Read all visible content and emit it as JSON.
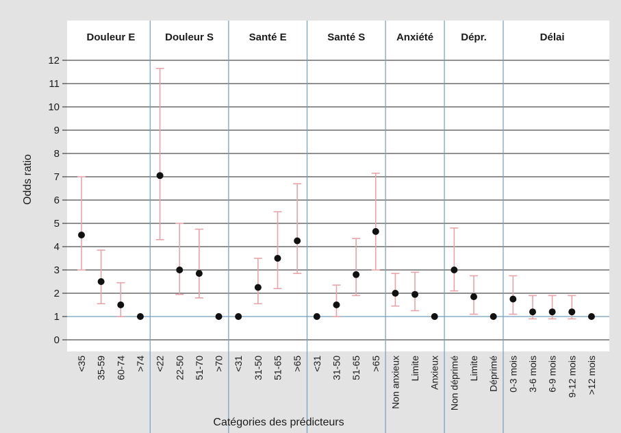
{
  "chart_data": {
    "type": "scatter",
    "title": "",
    "xlabel": "Catégories des prédicteurs",
    "ylabel": "Odds ratio",
    "ylim": [
      0,
      12
    ],
    "yticks": [
      "0",
      "1",
      "2",
      "3",
      "4",
      "5",
      "6",
      "7",
      "8",
      "9",
      "10",
      "11",
      "12"
    ],
    "grid": true,
    "reference_line": 1,
    "colors": {
      "point": "#111111",
      "error_bar": "#e8a3a8",
      "group_divider": "#6f9fbf",
      "reference_line": "#6f9fbf",
      "gridline": "#222222",
      "background": "#e3e3e3",
      "plot_background": "#ffffff"
    },
    "groups": [
      {
        "label": "Douleur E",
        "points": [
          {
            "category": "<35",
            "value": 4.5,
            "low": 3.0,
            "high": 7.0
          },
          {
            "category": "35-59",
            "value": 2.5,
            "low": 1.55,
            "high": 3.85
          },
          {
            "category": "60-74",
            "value": 1.5,
            "low": 1.0,
            "high": 2.45
          },
          {
            "category": ">74",
            "value": 1.0
          }
        ]
      },
      {
        "label": "Douleur S",
        "points": [
          {
            "category": "<22",
            "value": 7.05,
            "low": 4.3,
            "high": 11.65
          },
          {
            "category": "22-50",
            "value": 3.0,
            "low": 1.95,
            "high": 5.0
          },
          {
            "category": "51-70",
            "value": 2.85,
            "low": 1.8,
            "high": 4.75
          },
          {
            "category": ">70",
            "value": 1.0
          }
        ]
      },
      {
        "label": "Santé E",
        "points": [
          {
            "category": "<31",
            "value": 1.0
          },
          {
            "category": "31-50",
            "value": 2.25,
            "low": 1.55,
            "high": 3.5
          },
          {
            "category": "51-65",
            "value": 3.5,
            "low": 2.2,
            "high": 5.5
          },
          {
            "category": ">65",
            "value": 4.25,
            "low": 2.85,
            "high": 6.7
          }
        ]
      },
      {
        "label": "Santé S",
        "points": [
          {
            "category": "<31",
            "value": 1.0
          },
          {
            "category": "31-50",
            "value": 1.5,
            "low": 1.0,
            "high": 2.35
          },
          {
            "category": "51-65",
            "value": 2.8,
            "low": 1.9,
            "high": 4.35
          },
          {
            "category": ">65",
            "value": 4.65,
            "low": 3.0,
            "high": 7.15
          }
        ]
      },
      {
        "label": "Anxiété",
        "points": [
          {
            "category": "Non anxieux",
            "value": 2.0,
            "low": 1.45,
            "high": 2.85
          },
          {
            "category": "Limite",
            "value": 1.95,
            "low": 1.25,
            "high": 2.9
          },
          {
            "category": "Anxieux",
            "value": 1.0
          }
        ]
      },
      {
        "label": "Dépr.",
        "points": [
          {
            "category": "Non déprimé",
            "value": 3.0,
            "low": 2.1,
            "high": 4.8
          },
          {
            "category": "Limite",
            "value": 1.85,
            "low": 1.1,
            "high": 2.75
          },
          {
            "category": "Déprimé",
            "value": 1.0
          }
        ]
      },
      {
        "label": "Délai",
        "points": [
          {
            "category": "0-3 mois",
            "value": 1.75,
            "low": 1.1,
            "high": 2.75
          },
          {
            "category": "3-6 mois",
            "value": 1.2,
            "low": 0.9,
            "high": 1.9
          },
          {
            "category": "6-9 mois",
            "value": 1.2,
            "low": 0.9,
            "high": 1.9
          },
          {
            "category": "9-12 mois",
            "value": 1.2,
            "low": 0.9,
            "high": 1.9
          },
          {
            "category": ">12 mois",
            "value": 1.0
          }
        ]
      }
    ]
  }
}
